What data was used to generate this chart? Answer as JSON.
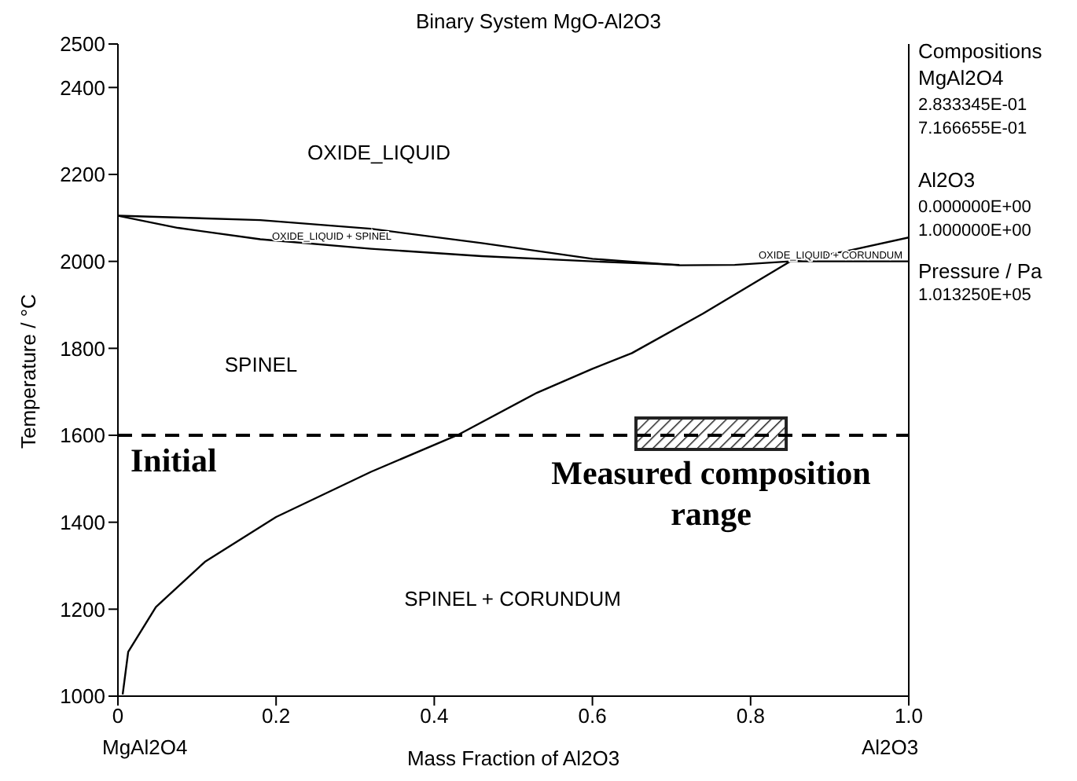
{
  "chart_data": {
    "type": "line",
    "title": "Binary System MgO-Al2O3",
    "xlabel": "Mass Fraction of Al2O3",
    "ylabel": "Temperature / °C",
    "xlim": [
      0,
      1
    ],
    "xticks": [
      0,
      0.2,
      0.4,
      0.6,
      0.8,
      {
        "value": 1,
        "label": "1.0"
      }
    ],
    "ylim": [
      1000,
      2500
    ],
    "yticks": [
      1000,
      1200,
      1400,
      1600,
      1800,
      2000,
      2200,
      2400,
      2500
    ],
    "marker": "none",
    "line_style": "solid",
    "series": [
      {
        "color": "#000000",
        "x": [
          0,
          0.18,
          0.32,
          0.46,
          0.6,
          0.71,
          0.78,
          0.85,
          0.92,
          1.0
        ],
        "values": [
          2105,
          2095,
          2075,
          2042,
          2006,
          1991,
          1992,
          2000,
          2023,
          2055
        ]
      },
      {
        "color": "#000000",
        "x": [
          0,
          0.076,
          0.18,
          0.32,
          0.46,
          0.6,
          0.71
        ],
        "values": [
          2105,
          2077,
          2051,
          2029,
          2012,
          2000,
          1992
        ]
      },
      {
        "color": "#000000",
        "x": [
          0.85,
          1.0
        ],
        "values": [
          2000,
          2000
        ]
      },
      {
        "color": "#000000",
        "x": [
          0.006,
          0.013,
          0.048,
          0.11,
          0.2,
          0.32,
          0.43,
          0.53,
          0.6,
          0.65,
          0.74,
          0.85
        ],
        "values": [
          1004,
          1102,
          1205,
          1309,
          1412,
          1516,
          1601,
          1698,
          1753,
          1789,
          1880,
          2000
        ]
      }
    ],
    "ref_lines": [
      {
        "axis": "y",
        "value": 1600,
        "label": "Initial",
        "color": "#000000",
        "line_style": "dashed"
      }
    ],
    "bands": [
      {
        "axis": "x",
        "from": 0.655,
        "to": 0.845,
        "label": "Measured composition range",
        "color": "#222222"
      }
    ],
    "annotations": [
      "Compositions",
      "MgAl2O4",
      "2.833345E-01",
      "7.166655E-01",
      "Al2O3",
      "0.000000E+00",
      "1.000000E+00",
      "Pressure / Pa",
      "1.013250E+05",
      "MgAl2O4",
      "Al2O3",
      "OXIDE_LIQUID",
      "OXIDE_LIQUID + SPINEL",
      "OXIDE_LIQUID + CORUNDUM",
      "SPINEL",
      "SPINEL + CORUNDUM"
    ]
  }
}
